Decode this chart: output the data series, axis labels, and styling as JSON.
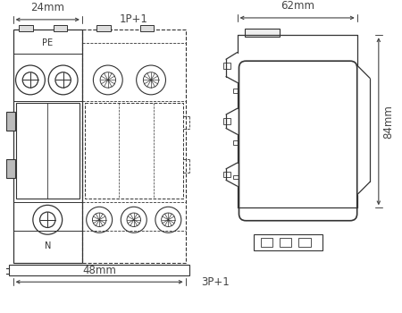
{
  "background_color": "#ffffff",
  "line_color": "#333333",
  "dim_color": "#444444",
  "font_size": 8.5,
  "dims": {
    "width_24": "24mm",
    "label_1p1": "1P+1",
    "width_62": "62mm",
    "height_84": "84mm",
    "width_48": "48mm",
    "label_3p1": "3P+1"
  }
}
